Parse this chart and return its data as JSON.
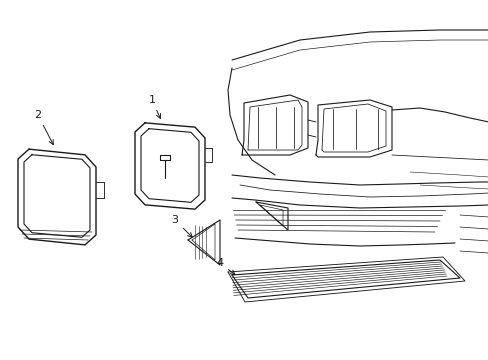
{
  "background_color": "#ffffff",
  "line_color": "#1a1a1a",
  "line_width": 0.8,
  "label_fontsize": 8,
  "fig_width": 4.89,
  "fig_height": 3.6,
  "dpi": 100
}
